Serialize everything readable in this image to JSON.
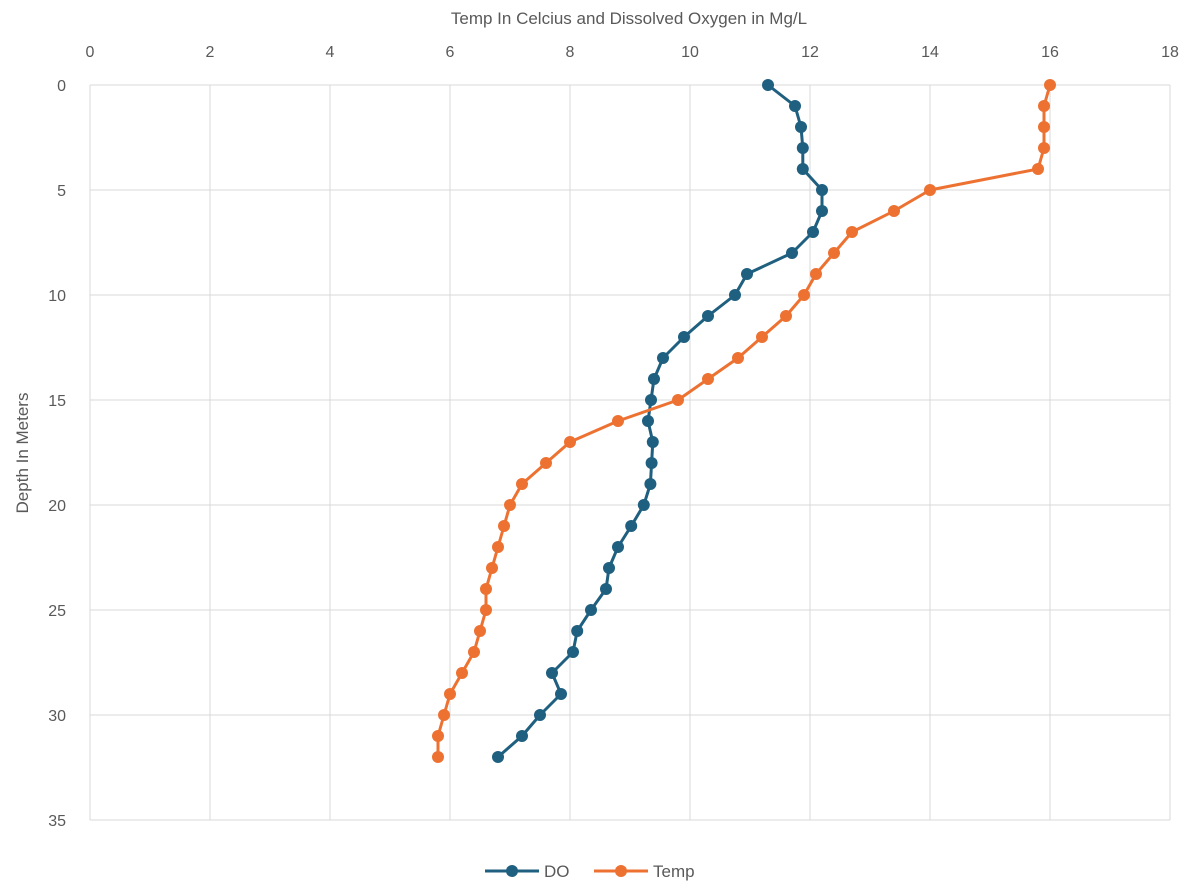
{
  "chart_data": {
    "type": "line",
    "title": "",
    "xlabel": "Temp In Celcius and Dissolved Oxygen in Mg/L",
    "ylabel": "Depth In Meters",
    "xlim": [
      0,
      18
    ],
    "ylim": [
      0,
      35
    ],
    "y_inverted": true,
    "x_axis_position": "top",
    "x_ticks": [
      "0",
      "2",
      "4",
      "6",
      "8",
      "10",
      "12",
      "14",
      "16",
      "18"
    ],
    "y_ticks": [
      "0",
      "5",
      "10",
      "15",
      "20",
      "25",
      "30",
      "35"
    ],
    "grid": true,
    "legend_position": "bottom",
    "colors": {
      "DO": "#1f5f7f",
      "Temp": "#ed7232",
      "grid": "#d9d9d9",
      "text": "#595959"
    },
    "series": [
      {
        "name": "DO",
        "points": [
          [
            11.3,
            0
          ],
          [
            11.75,
            1
          ],
          [
            11.85,
            2
          ],
          [
            11.88,
            3
          ],
          [
            11.88,
            4
          ],
          [
            12.2,
            5
          ],
          [
            12.2,
            6
          ],
          [
            12.05,
            7
          ],
          [
            11.7,
            8
          ],
          [
            10.95,
            9
          ],
          [
            10.75,
            10
          ],
          [
            10.3,
            11
          ],
          [
            9.9,
            12
          ],
          [
            9.55,
            13
          ],
          [
            9.4,
            14
          ],
          [
            9.35,
            15
          ],
          [
            9.3,
            16
          ],
          [
            9.38,
            17
          ],
          [
            9.36,
            18
          ],
          [
            9.34,
            19
          ],
          [
            9.23,
            20
          ],
          [
            9.02,
            21
          ],
          [
            8.8,
            22
          ],
          [
            8.65,
            23
          ],
          [
            8.6,
            24
          ],
          [
            8.35,
            25
          ],
          [
            8.12,
            26
          ],
          [
            8.05,
            27
          ],
          [
            7.7,
            28
          ],
          [
            7.85,
            29
          ],
          [
            7.5,
            30
          ],
          [
            7.2,
            31
          ],
          [
            6.8,
            32
          ]
        ]
      },
      {
        "name": "Temp",
        "points": [
          [
            16.0,
            0
          ],
          [
            15.9,
            1
          ],
          [
            15.9,
            2
          ],
          [
            15.9,
            3
          ],
          [
            15.8,
            4
          ],
          [
            14.0,
            5
          ],
          [
            13.4,
            6
          ],
          [
            12.7,
            7
          ],
          [
            12.4,
            8
          ],
          [
            12.1,
            9
          ],
          [
            11.9,
            10
          ],
          [
            11.6,
            11
          ],
          [
            11.2,
            12
          ],
          [
            10.8,
            13
          ],
          [
            10.3,
            14
          ],
          [
            9.8,
            15
          ],
          [
            8.8,
            16
          ],
          [
            8.0,
            17
          ],
          [
            7.6,
            18
          ],
          [
            7.2,
            19
          ],
          [
            7.0,
            20
          ],
          [
            6.9,
            21
          ],
          [
            6.8,
            22
          ],
          [
            6.7,
            23
          ],
          [
            6.6,
            24
          ],
          [
            6.6,
            25
          ],
          [
            6.5,
            26
          ],
          [
            6.4,
            27
          ],
          [
            6.2,
            28
          ],
          [
            6.0,
            29
          ],
          [
            5.9,
            30
          ],
          [
            5.8,
            31
          ],
          [
            5.8,
            32
          ]
        ]
      }
    ]
  }
}
